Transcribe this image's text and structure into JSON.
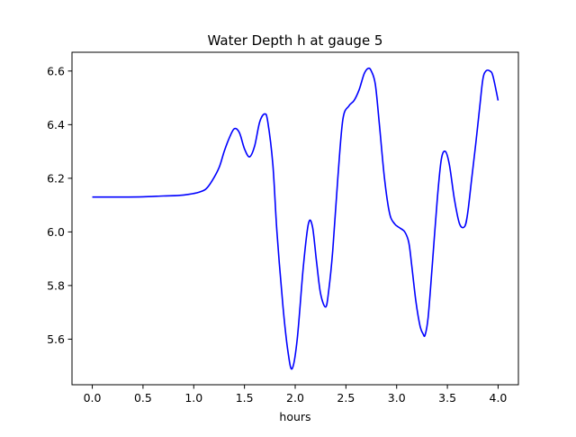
{
  "chart_data": {
    "type": "line",
    "title": "Water Depth h at gauge 5",
    "xlabel": "hours",
    "ylabel": "",
    "xlim": [
      -0.2,
      4.2
    ],
    "ylim": [
      5.43,
      6.67
    ],
    "xticks": [
      0.0,
      0.5,
      1.0,
      1.5,
      2.0,
      2.5,
      3.0,
      3.5,
      4.0
    ],
    "xtick_labels": [
      "0.0",
      "0.5",
      "1.0",
      "1.5",
      "2.0",
      "2.5",
      "3.0",
      "3.5",
      "4.0"
    ],
    "yticks": [
      5.6,
      5.8,
      6.0,
      6.2,
      6.4,
      6.6
    ],
    "ytick_labels": [
      "5.6",
      "5.8",
      "6.0",
      "6.2",
      "6.4",
      "6.6"
    ],
    "grid": false,
    "colors": {
      "line": "#0000ff",
      "axes": "#000000",
      "background": "#ffffff"
    },
    "series": [
      {
        "x": [
          0.0,
          0.3,
          0.5,
          0.7,
          0.85,
          0.95,
          1.05,
          1.12,
          1.18,
          1.25,
          1.3,
          1.35,
          1.4,
          1.45,
          1.5,
          1.55,
          1.6,
          1.65,
          1.7,
          1.73,
          1.78,
          1.82,
          1.88,
          1.93,
          1.97,
          2.02,
          2.08,
          2.13,
          2.17,
          2.21,
          2.25,
          2.3,
          2.33,
          2.37,
          2.42,
          2.47,
          2.53,
          2.58,
          2.63,
          2.68,
          2.72,
          2.75,
          2.79,
          2.83,
          2.88,
          2.93,
          2.98,
          3.03,
          3.08,
          3.12,
          3.15,
          3.19,
          3.23,
          3.26,
          3.28,
          3.31,
          3.35,
          3.4,
          3.44,
          3.48,
          3.52,
          3.57,
          3.62,
          3.67,
          3.7,
          3.74,
          3.78,
          3.82,
          3.85,
          3.88,
          3.92,
          3.95,
          4.0
        ],
        "y": [
          6.13,
          6.13,
          6.131,
          6.134,
          6.136,
          6.14,
          6.148,
          6.16,
          6.19,
          6.24,
          6.3,
          6.35,
          6.385,
          6.37,
          6.31,
          6.28,
          6.32,
          6.41,
          6.44,
          6.41,
          6.25,
          6.0,
          5.72,
          5.55,
          5.49,
          5.6,
          5.87,
          6.03,
          6.02,
          5.89,
          5.77,
          5.72,
          5.78,
          5.93,
          6.2,
          6.42,
          6.47,
          6.49,
          6.53,
          6.59,
          6.61,
          6.6,
          6.55,
          6.4,
          6.2,
          6.07,
          6.03,
          6.015,
          6.0,
          5.96,
          5.87,
          5.74,
          5.65,
          5.62,
          5.615,
          5.68,
          5.87,
          6.12,
          6.27,
          6.3,
          6.25,
          6.12,
          6.03,
          6.02,
          6.07,
          6.2,
          6.33,
          6.47,
          6.57,
          6.6,
          6.6,
          6.58,
          6.49
        ]
      }
    ]
  }
}
